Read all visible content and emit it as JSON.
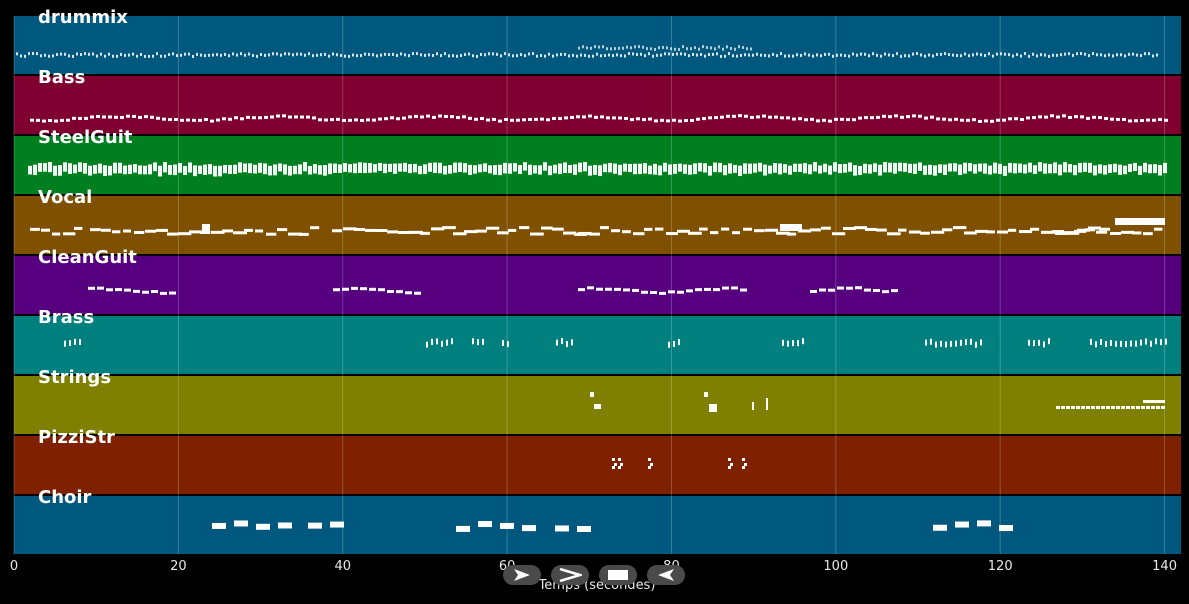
{
  "tracks": [
    {
      "name": "drummix",
      "color": "#00587f"
    },
    {
      "name": "Bass",
      "color": "#7f0030"
    },
    {
      "name": "SteelGuit",
      "color": "#007f20"
    },
    {
      "name": "Vocal",
      "color": "#7f5000"
    },
    {
      "name": "CleanGuit",
      "color": "#56007f"
    },
    {
      "name": "Brass",
      "color": "#007f7f"
    },
    {
      "name": "Strings",
      "color": "#7f7f00"
    },
    {
      "name": "PizziStr",
      "color": "#7f2000"
    },
    {
      "name": "Choir",
      "color": "#00587f"
    }
  ],
  "xaxis": {
    "ticks": [
      "0",
      "20",
      "40",
      "60",
      "80",
      "100",
      "120",
      "140"
    ],
    "tick_values": [
      0,
      20,
      40,
      60,
      80,
      100,
      120,
      140
    ],
    "range": [
      0,
      142
    ],
    "title": "Temps (secondes)"
  },
  "controls": {
    "play_icon": "play-icon",
    "next_icon": "next-icon",
    "stop_icon": "stop-icon",
    "rewind_icon": "rewind-icon"
  }
}
